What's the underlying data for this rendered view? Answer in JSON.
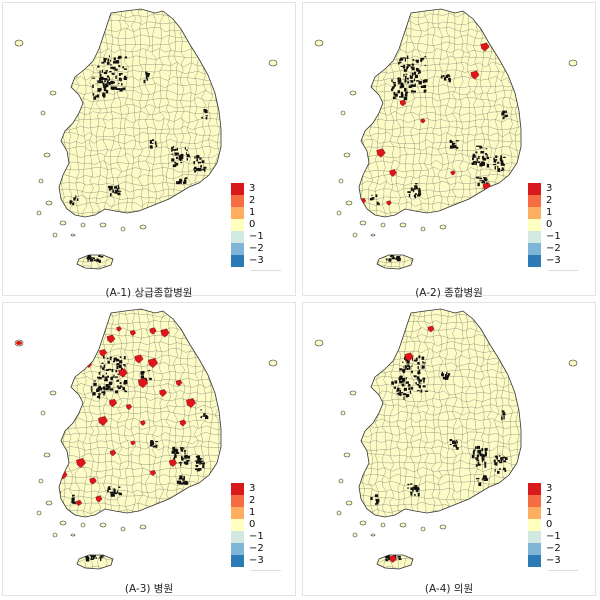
{
  "panels": [
    {
      "id": "a1",
      "caption": "(A-1) 상급종합병원",
      "hotspots": "high-seoul",
      "reds": "none"
    },
    {
      "id": "a2",
      "caption": "(A-2) 종합병원",
      "hotspots": "high-seoul",
      "reds": "few"
    },
    {
      "id": "a3",
      "caption": "(A-3) 병원",
      "hotspots": "high-seoul",
      "reds": "many"
    },
    {
      "id": "a4",
      "caption": "(A-4) 의원",
      "hotspots": "high-seoul",
      "reds": "rare"
    }
  ],
  "legend": {
    "items": [
      {
        "label": "3",
        "color": "#d7191c"
      },
      {
        "label": "2",
        "color": "#f46d43"
      },
      {
        "label": "1",
        "color": "#fdae61"
      },
      {
        "label": "0",
        "color": "#ffffbf"
      },
      {
        "label": "−1",
        "color": "#d1e9e0"
      },
      {
        "label": "−2",
        "color": "#7fb5d6"
      },
      {
        "label": "−3",
        "color": "#2c7bb6"
      }
    ]
  },
  "colors": {
    "land": "#fdfcc6",
    "border": "#333333",
    "hotspot": "#111111",
    "red": "#e0151c"
  }
}
